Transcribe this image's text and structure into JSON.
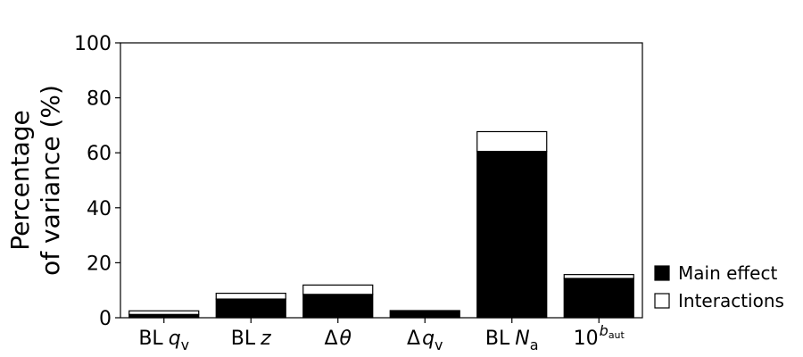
{
  "chart_data": {
    "type": "bar",
    "stacked": true,
    "ylabel": [
      "Percentage",
      "of variance (%)"
    ],
    "ylim": [
      0,
      100
    ],
    "yticks": [
      0,
      20,
      40,
      60,
      80,
      100
    ],
    "categories": [
      {
        "base": "BL",
        "sym": "q",
        "sub": "v",
        "sup": "",
        "id": "bl-qv"
      },
      {
        "base": "BL",
        "sym": "z",
        "sub": "",
        "sup": "",
        "id": "bl-z"
      },
      {
        "base": "Δ",
        "sym": "θ",
        "sub": "",
        "sup": "",
        "id": "delta-theta"
      },
      {
        "base": "Δ",
        "sym": "q",
        "sub": "v",
        "sup": "",
        "id": "delta-qv"
      },
      {
        "base": "BL",
        "sym": "N",
        "sub": "a",
        "sup": "",
        "id": "bl-na"
      },
      {
        "base": "10",
        "sym": "",
        "sub": "",
        "sup": "b",
        "supsub": "aut",
        "id": "ten-baut"
      }
    ],
    "series": [
      {
        "name": "Main effect",
        "values": [
          1.2,
          6.8,
          8.5,
          2.6,
          60.5,
          14.3
        ],
        "color": "#000000"
      },
      {
        "name": "Interactions",
        "values": [
          1.3,
          2.1,
          3.4,
          0.0,
          7.2,
          1.4
        ],
        "color": "#ffffff"
      }
    ],
    "legend_position": "right"
  }
}
